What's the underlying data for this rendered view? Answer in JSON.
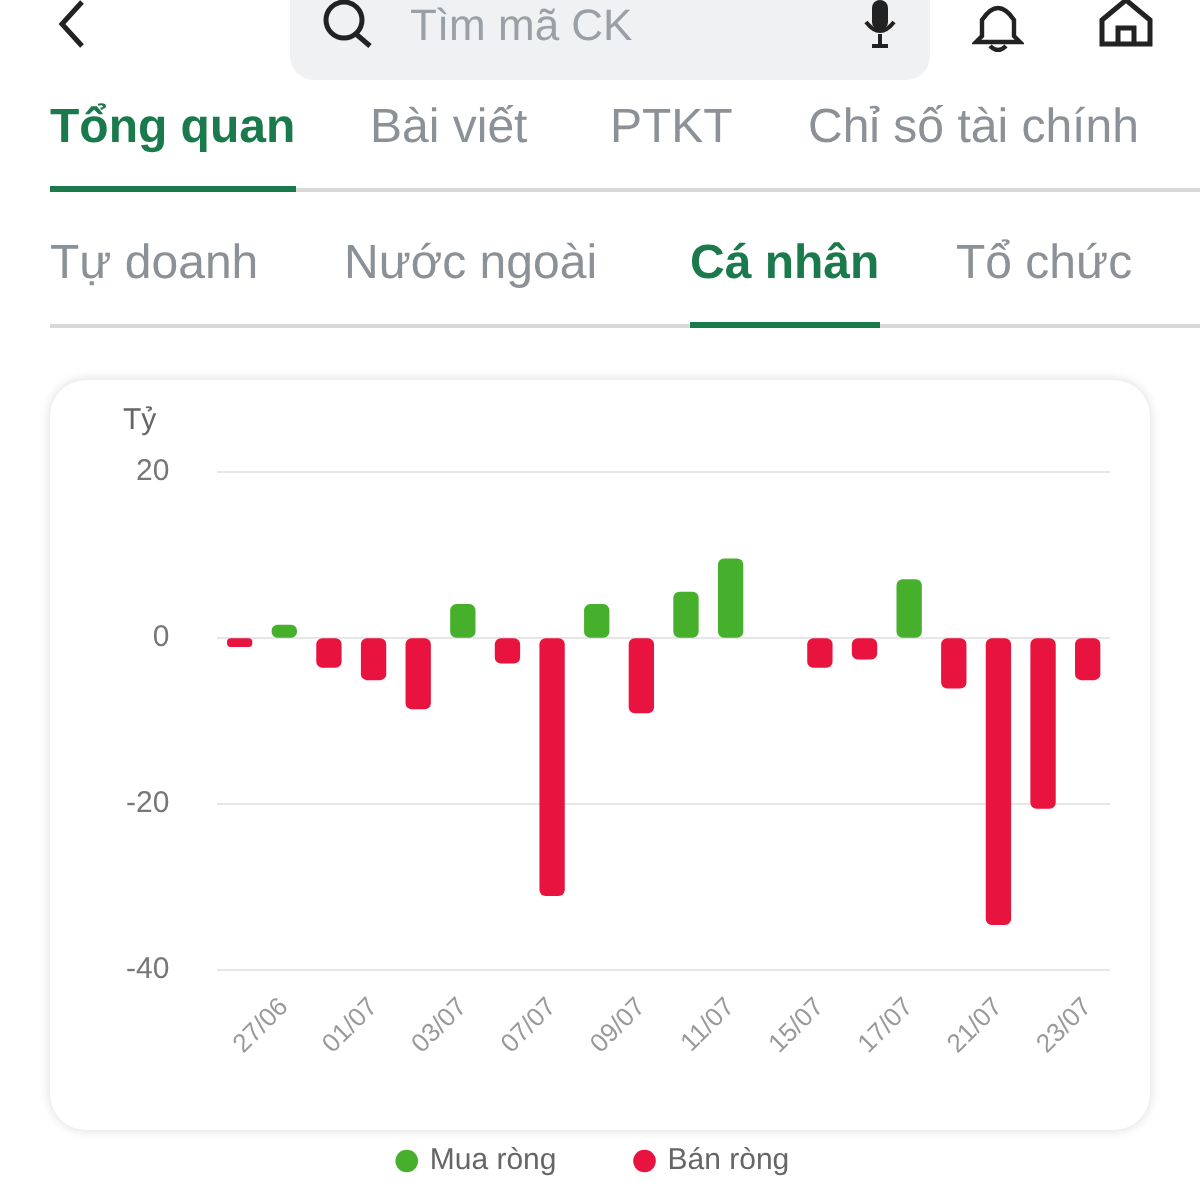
{
  "chart_data": {
    "type": "bar",
    "ylabel": "Tỷ",
    "annotations": [
      "Tìm mã CK",
      "Tổng quan",
      "Bài viết",
      "PTKT",
      "Chỉ số tài chính",
      "Tự doanh",
      "Nước ngoài",
      "Cá nhân",
      "Tổ chức"
    ],
    "categories": [
      null,
      "27/06",
      null,
      "01/07",
      null,
      "03/07",
      null,
      "07/07",
      null,
      "09/07",
      null,
      "11/07",
      null,
      "15/07",
      null,
      "17/07",
      null,
      "21/07",
      null,
      "23/07"
    ],
    "series": [
      {
        "name": "Mua ròng",
        "color": "#46b02c",
        "values": [
          null,
          1.5,
          null,
          null,
          null,
          4,
          null,
          null,
          4,
          null,
          5.5,
          9.5,
          null,
          null,
          null,
          7,
          null,
          null,
          null,
          null
        ]
      },
      {
        "name": "Bán ròng",
        "color": "#e8133e",
        "values": [
          -1,
          null,
          -3.5,
          -5,
          -8.5,
          null,
          -3,
          -31,
          null,
          -9,
          null,
          null,
          null,
          -3.5,
          -2.5,
          null,
          -6,
          -34.5,
          -20.5,
          -5
        ]
      }
    ],
    "stacked": true,
    "ylim": [
      -40,
      20
    ],
    "yticks": [
      -40,
      -20,
      0,
      20
    ],
    "grid": "y",
    "legend": "bottom"
  }
}
